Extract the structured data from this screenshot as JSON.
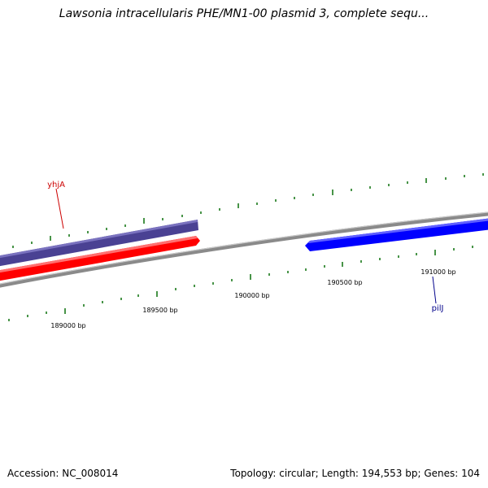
{
  "title": "Lawsonia intracellularis PHE/MN1-00 plasmid 3, complete sequ...",
  "footer": {
    "accession": "Accession: NC_008014",
    "summary": "Topology: circular; Length: 194,553 bp; Genes: 104"
  },
  "ticks": {
    "labels": [
      "189000 bp",
      "189500 bp",
      "190000 bp",
      "190500 bp",
      "191000 bp"
    ],
    "color": "#1a7a1a"
  },
  "genes": [
    {
      "name": "yhjA",
      "color": "#cc0000",
      "strand": "forward"
    },
    {
      "name": "pilJ",
      "color": "#00008b",
      "strand": "reverse"
    }
  ],
  "colors": {
    "backbone": "#8a8a8a",
    "gene_purple": "#4a4193",
    "gene_red": "#ff0000",
    "gene_blue": "#0000ff"
  }
}
